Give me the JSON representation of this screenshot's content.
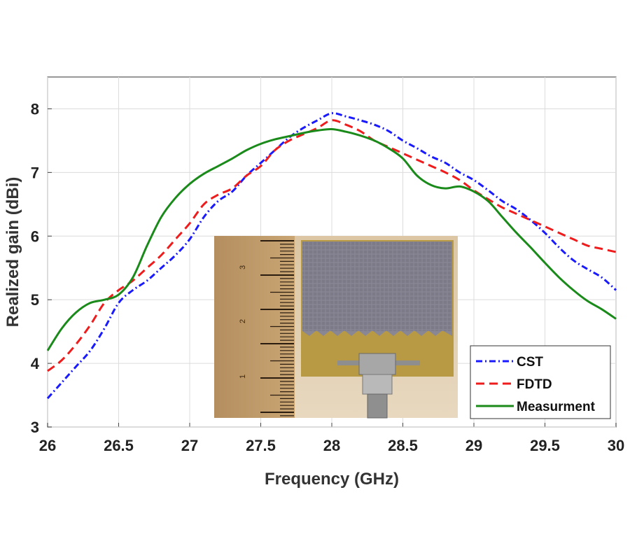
{
  "chart_data": {
    "type": "line",
    "title": "",
    "xlabel": "Frequency (GHz)",
    "ylabel": "Realized gain (dBi)",
    "xlim": [
      26,
      30
    ],
    "ylim": [
      3,
      8.5
    ],
    "xticks": [
      26,
      26.5,
      27,
      27.5,
      28,
      28.5,
      29,
      29.5,
      30
    ],
    "xtick_labels": [
      "26",
      "26.5",
      "27",
      "27.5",
      "28",
      "28.5",
      "29",
      "29.5",
      "30"
    ],
    "yticks": [
      3,
      4,
      5,
      6,
      7,
      8
    ],
    "ytick_labels": [
      "3",
      "4",
      "5",
      "6",
      "7",
      "8"
    ],
    "grid": true,
    "legend_position": "bottom-right",
    "series": [
      {
        "name": "CST",
        "color": "#1a1aff",
        "style": "dashdot",
        "x": [
          26,
          26.1,
          26.2,
          26.3,
          26.4,
          26.5,
          26.6,
          26.7,
          26.8,
          26.9,
          27,
          27.1,
          27.2,
          27.3,
          27.4,
          27.5,
          27.6,
          27.7,
          27.8,
          27.9,
          28,
          28.1,
          28.2,
          28.3,
          28.4,
          28.5,
          28.6,
          28.7,
          28.8,
          28.9,
          29,
          29.1,
          29.2,
          29.3,
          29.4,
          29.5,
          29.6,
          29.7,
          29.8,
          29.9,
          30
        ],
        "y": [
          3.45,
          3.7,
          3.95,
          4.2,
          4.55,
          4.95,
          5.15,
          5.3,
          5.5,
          5.7,
          5.95,
          6.3,
          6.55,
          6.7,
          6.95,
          7.15,
          7.35,
          7.55,
          7.7,
          7.82,
          7.93,
          7.88,
          7.82,
          7.75,
          7.65,
          7.5,
          7.38,
          7.25,
          7.15,
          7.0,
          6.88,
          6.72,
          6.55,
          6.42,
          6.25,
          6.05,
          5.82,
          5.62,
          5.48,
          5.35,
          5.15
        ]
      },
      {
        "name": "FDTD",
        "color": "#ee1c1c",
        "style": "dashed",
        "x": [
          26,
          26.1,
          26.2,
          26.3,
          26.4,
          26.5,
          26.6,
          26.7,
          26.8,
          26.9,
          27,
          27.1,
          27.2,
          27.3,
          27.4,
          27.5,
          27.6,
          27.7,
          27.8,
          27.9,
          28,
          28.1,
          28.2,
          28.3,
          28.4,
          28.5,
          28.6,
          28.7,
          28.8,
          28.9,
          29,
          29.1,
          29.2,
          29.3,
          29.4,
          29.5,
          29.6,
          29.7,
          29.8,
          29.9,
          30
        ],
        "y": [
          3.88,
          4.05,
          4.3,
          4.6,
          4.95,
          5.15,
          5.3,
          5.5,
          5.7,
          5.95,
          6.2,
          6.5,
          6.65,
          6.75,
          6.95,
          7.1,
          7.35,
          7.5,
          7.6,
          7.7,
          7.82,
          7.75,
          7.65,
          7.5,
          7.4,
          7.3,
          7.2,
          7.1,
          7.0,
          6.88,
          6.72,
          6.58,
          6.45,
          6.35,
          6.25,
          6.15,
          6.05,
          5.95,
          5.85,
          5.8,
          5.75
        ]
      },
      {
        "name": "Measurment",
        "color": "#1a8a1a",
        "style": "solid",
        "x": [
          26,
          26.1,
          26.2,
          26.3,
          26.4,
          26.5,
          26.6,
          26.7,
          26.8,
          26.9,
          27,
          27.1,
          27.2,
          27.3,
          27.4,
          27.5,
          27.6,
          27.7,
          27.8,
          27.9,
          28,
          28.1,
          28.2,
          28.3,
          28.4,
          28.5,
          28.6,
          28.7,
          28.8,
          28.9,
          29,
          29.1,
          29.2,
          29.3,
          29.4,
          29.5,
          29.6,
          29.7,
          29.8,
          29.9,
          30
        ],
        "y": [
          4.2,
          4.55,
          4.8,
          4.95,
          5.0,
          5.08,
          5.35,
          5.85,
          6.3,
          6.6,
          6.82,
          6.98,
          7.1,
          7.22,
          7.35,
          7.45,
          7.52,
          7.57,
          7.62,
          7.66,
          7.68,
          7.64,
          7.58,
          7.5,
          7.38,
          7.22,
          6.95,
          6.8,
          6.75,
          6.78,
          6.7,
          6.55,
          6.3,
          6.05,
          5.82,
          5.58,
          5.35,
          5.15,
          4.98,
          4.85,
          4.7
        ]
      }
    ],
    "inset": {
      "description_name": "photo-of-fabricated-antenna",
      "ruler_labels": [
        "3",
        "2",
        "1"
      ]
    }
  }
}
